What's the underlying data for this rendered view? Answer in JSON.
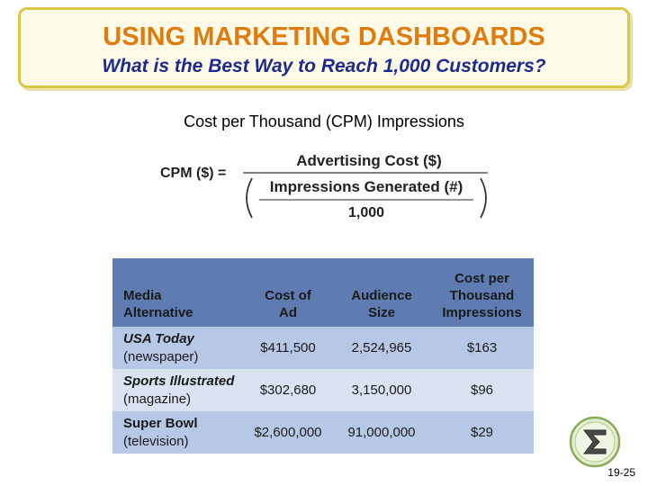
{
  "slide": {
    "title": "USING MARKETING DASHBOARDS",
    "subtitle": "What is the Best Way to Reach 1,000 Customers?",
    "section_heading": "Cost per Thousand (CPM) Impressions",
    "page_number": "19-25"
  },
  "formula": {
    "lhs": "CPM ($) =",
    "numerator": "Advertising Cost ($)",
    "denominator_top": "Impressions Generated (#)",
    "denominator_bottom": "1,000"
  },
  "table": {
    "headers": {
      "media": [
        "Media",
        "Alternative"
      ],
      "cost": [
        "Cost of",
        "Ad"
      ],
      "audience": [
        "Audience",
        "Size"
      ],
      "cpm": [
        "Cost per",
        "Thousand",
        "Impressions"
      ]
    },
    "rows": [
      {
        "name": "USA Today",
        "type": "(newspaper)",
        "cost": "$411,500",
        "audience": "2,524,965",
        "cpm": "$163"
      },
      {
        "name": "Sports Illustrated",
        "type": "(magazine)",
        "cost": "$302,680",
        "audience": "3,150,000",
        "cpm": "$96"
      },
      {
        "name": "Super Bowl",
        "type": "(television)",
        "cost": "$2,600,000",
        "audience": "91,000,000",
        "cpm": "$29"
      }
    ]
  },
  "colors": {
    "title": "#e07b0e",
    "subtitle": "#1f2b8c",
    "table_header": "#5e7cb2",
    "row_dark": "#b7c7e6",
    "row_light": "#dbe3f2"
  },
  "icons": {
    "logo": "sigma-logo-icon"
  }
}
